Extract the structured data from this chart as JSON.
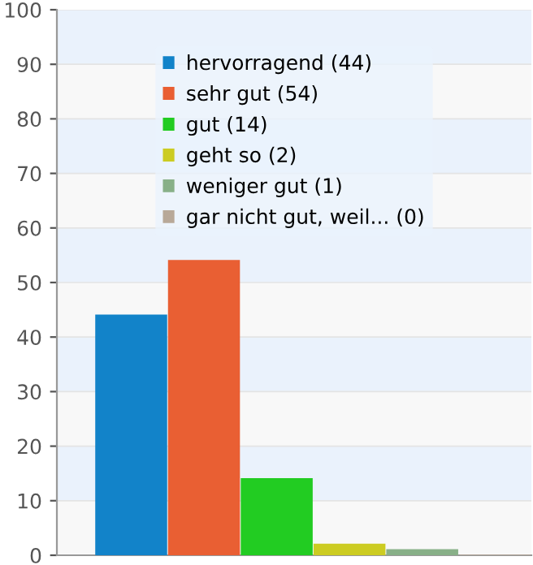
{
  "chart_data": {
    "type": "bar",
    "categories": [
      null
    ],
    "series": [
      {
        "name": "hervorragend (44)",
        "color": "#1283c9",
        "values": [
          44
        ]
      },
      {
        "name": "sehr gut (54)",
        "color": "#e95f33",
        "values": [
          54
        ]
      },
      {
        "name": "gut (14)",
        "color": "#22cc22",
        "values": [
          14
        ]
      },
      {
        "name": "geht so (2)",
        "color": "#cccc22",
        "values": [
          2
        ]
      },
      {
        "name": "weniger gut (1)",
        "color": "#88b088",
        "values": [
          1
        ]
      },
      {
        "name": "gar nicht gut, weil... (0)",
        "color": "#b8a898",
        "values": [
          0
        ]
      }
    ],
    "ylim": [
      0,
      100
    ],
    "yticks": [
      0,
      10,
      20,
      30,
      40,
      50,
      60,
      70,
      80,
      90,
      100
    ],
    "grid": "y",
    "legend": "top"
  }
}
